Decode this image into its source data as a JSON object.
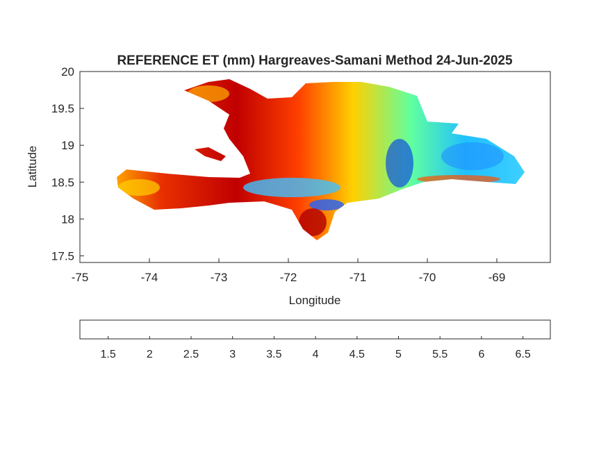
{
  "chart_data": {
    "type": "map",
    "title": "REFERENCE ET (mm) Hargreaves-Samani Method  24-Jun-2025",
    "xlabel": "Longitude",
    "ylabel": "Latitude",
    "xlim": [
      -75,
      -68.23
    ],
    "xticks": [
      -75,
      -74,
      -73,
      -72,
      -71,
      -70,
      -69
    ],
    "ylim": [
      17.41,
      20
    ],
    "yticks": [
      17.5,
      18,
      18.5,
      19,
      19.5,
      20
    ],
    "colormap": "jet",
    "clim": [
      1.16,
      6.83
    ],
    "cticks": [
      1.5,
      2,
      2.5,
      3,
      3.5,
      4,
      4.5,
      5,
      5.5,
      6,
      6.5
    ]
  }
}
